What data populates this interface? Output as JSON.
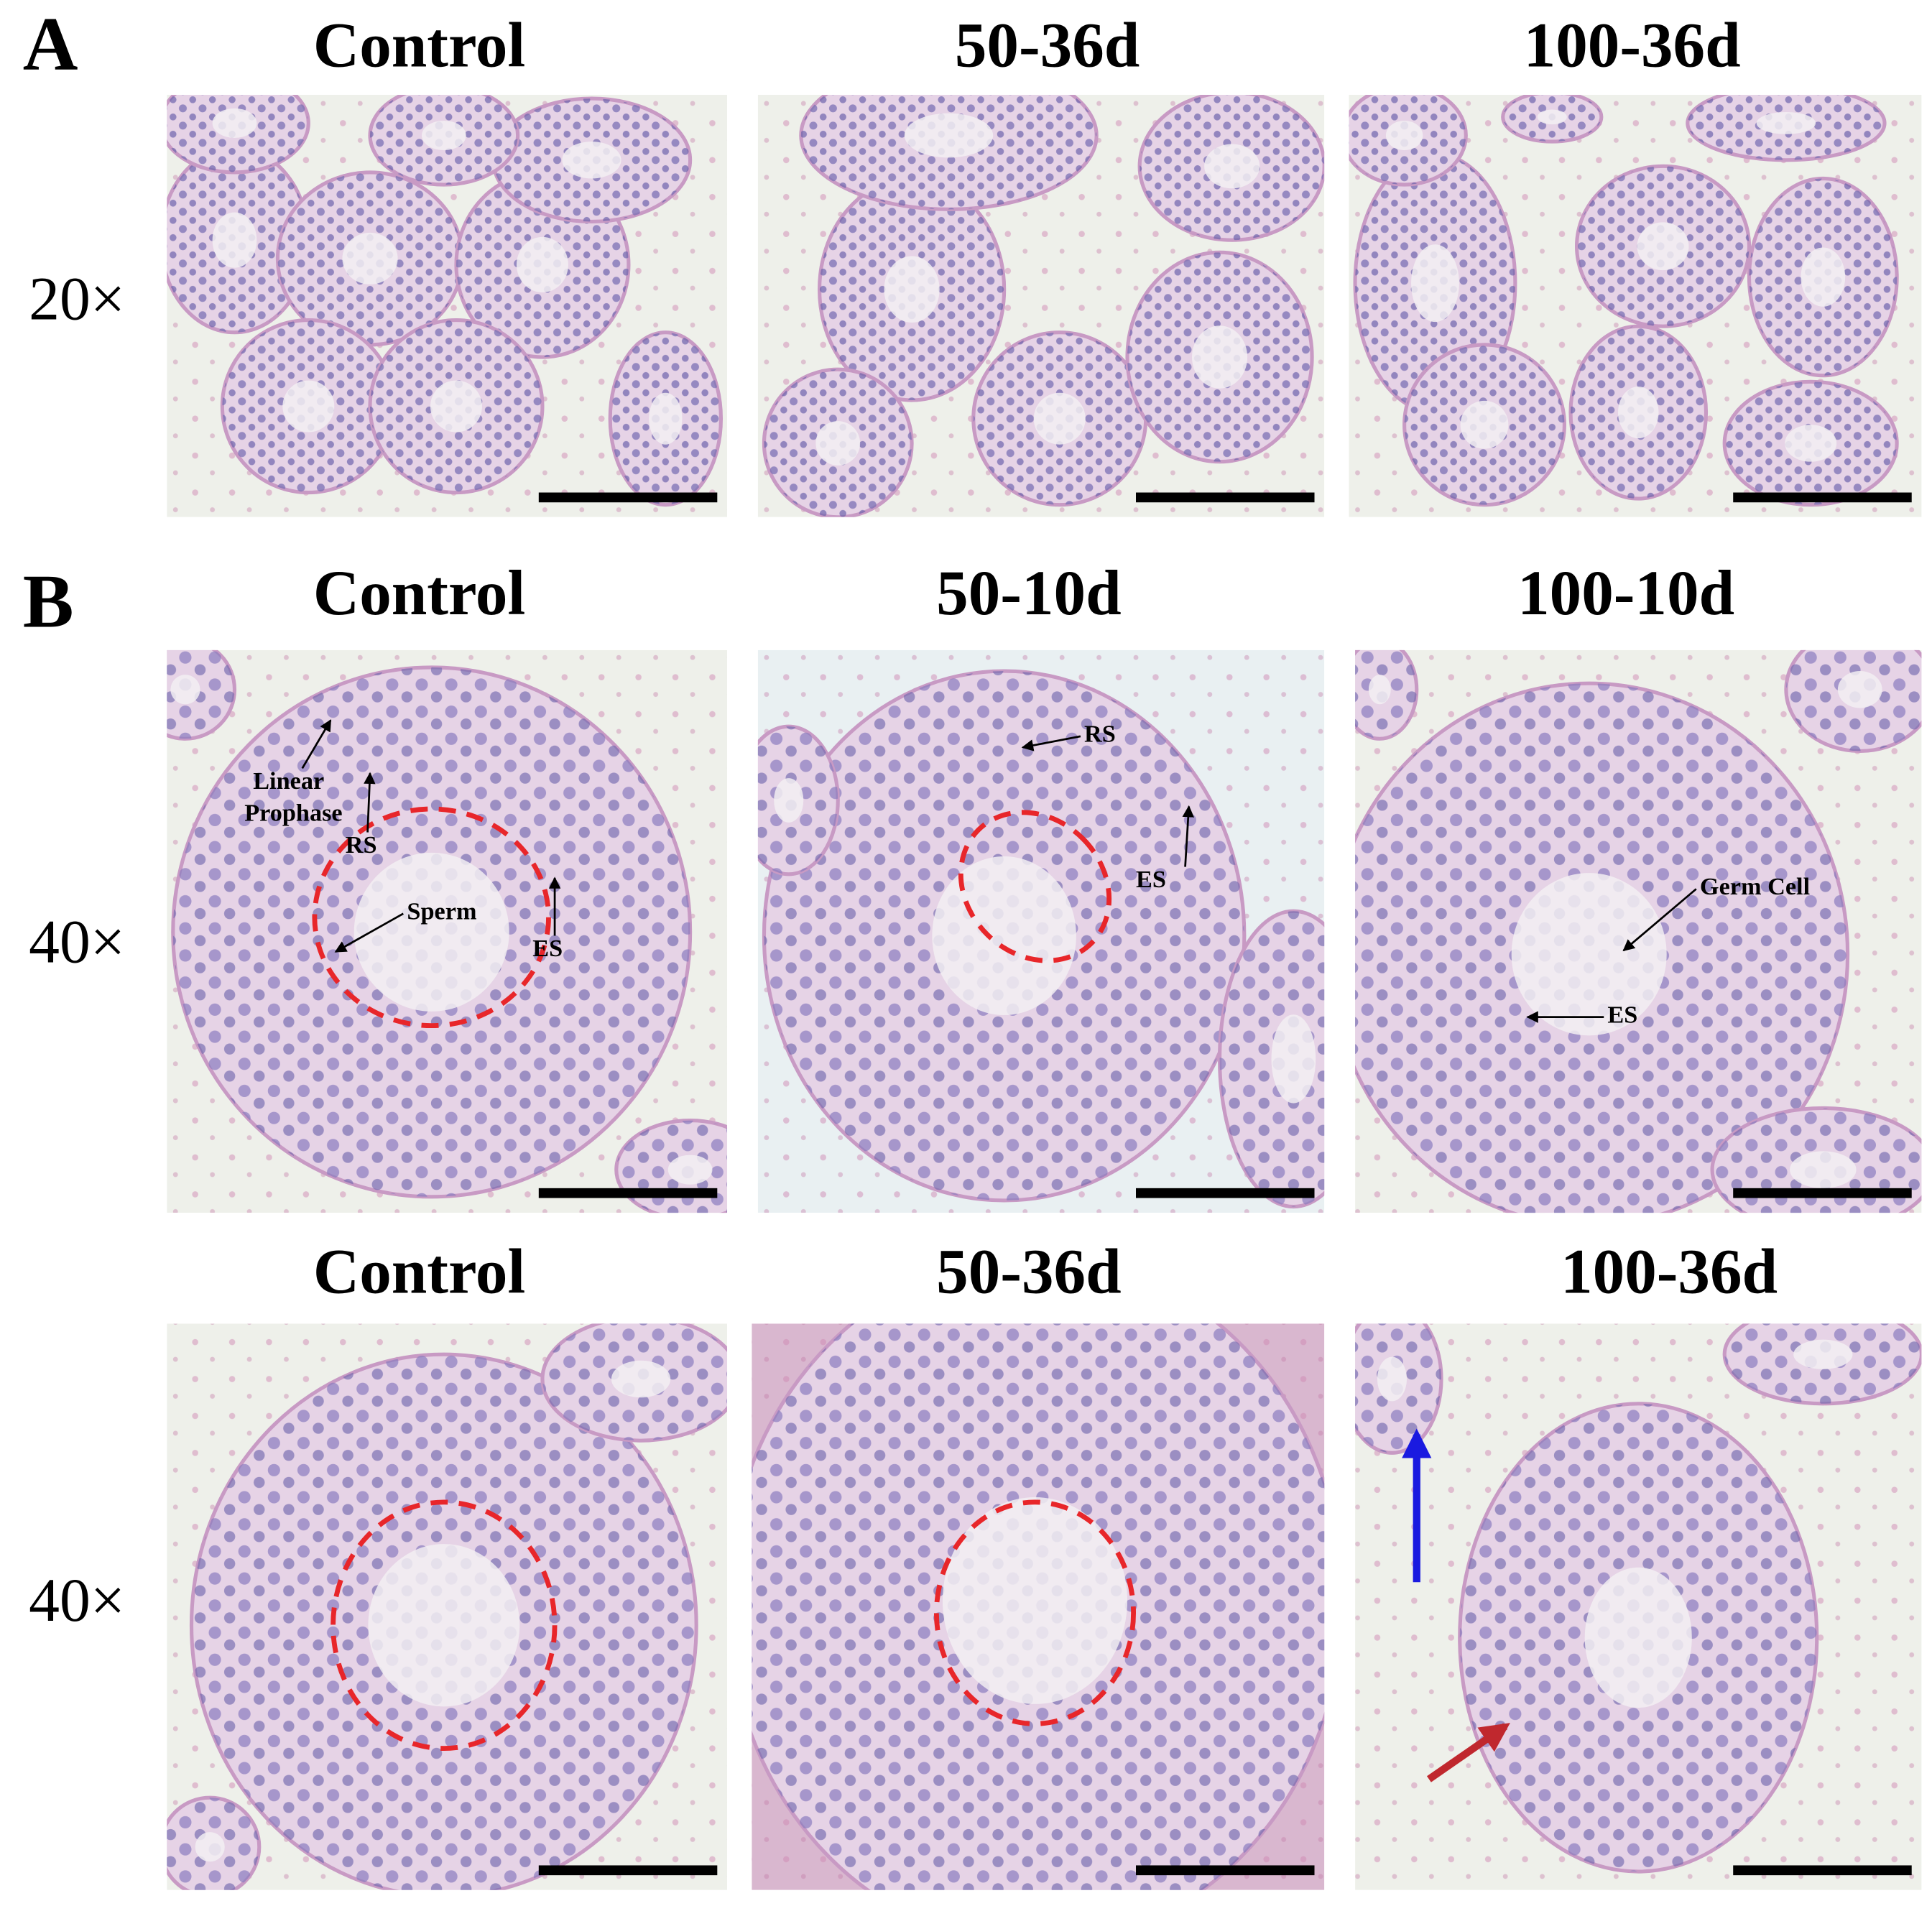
{
  "figure": {
    "sections": [
      {
        "label": "A",
        "rows": [
          {
            "magnification": "20×",
            "panels": [
              {
                "title": "Control"
              },
              {
                "title": "50-36d"
              },
              {
                "title": "100-36d"
              }
            ]
          }
        ]
      },
      {
        "label": "B",
        "rows": [
          {
            "magnification": "40×",
            "panels": [
              {
                "title": "Control",
                "annotations": [
                  "Linear",
                  "Prophase",
                  "RS",
                  "Sperm",
                  "ES"
                ]
              },
              {
                "title": "50-10d",
                "annotations": [
                  "RS",
                  "ES"
                ]
              },
              {
                "title": "100-10d",
                "annotations": [
                  "Germ Cell",
                  "ES"
                ]
              }
            ]
          },
          {
            "magnification": "40×",
            "panels": [
              {
                "title": "Control"
              },
              {
                "title": "50-36d"
              },
              {
                "title": "100-36d"
              }
            ]
          }
        ]
      }
    ]
  }
}
